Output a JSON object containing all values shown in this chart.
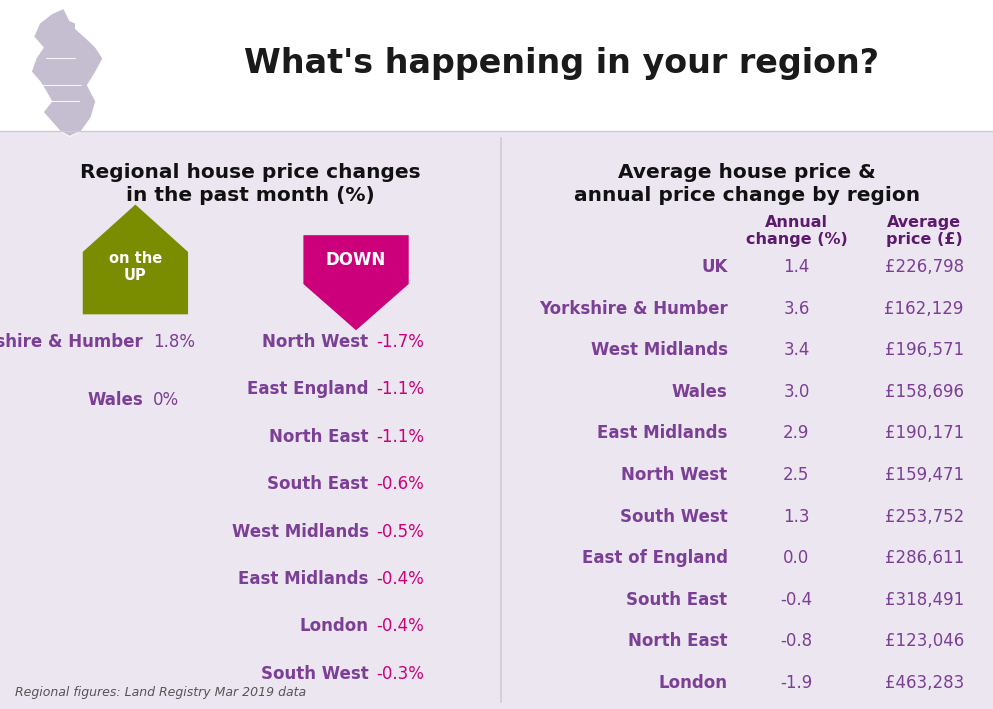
{
  "title": "What's happening in your region?",
  "left_title": "Regional house price changes\nin the past month (%)",
  "right_title": "Average house price &\nannual price change by region",
  "up_regions": [
    {
      "name": "Yorkshire & Humber",
      "value": "1.8%"
    },
    {
      "name": "Wales",
      "value": "0%"
    }
  ],
  "down_regions": [
    {
      "name": "North West",
      "value": "-1.7%"
    },
    {
      "name": "East England",
      "value": "-1.1%"
    },
    {
      "name": "North East",
      "value": "-1.1%"
    },
    {
      "name": "South East",
      "value": "-0.6%"
    },
    {
      "name": "West Midlands",
      "value": "-0.5%"
    },
    {
      "name": "East Midlands",
      "value": "-0.4%"
    },
    {
      "name": "London",
      "value": "-0.4%"
    },
    {
      "name": "South West",
      "value": "-0.3%"
    }
  ],
  "annual_table": [
    {
      "region": "UK",
      "annual": "1.4",
      "price": "£226,798"
    },
    {
      "region": "Yorkshire & Humber",
      "annual": "3.6",
      "price": "£162,129"
    },
    {
      "region": "West Midlands",
      "annual": "3.4",
      "price": "£196,571"
    },
    {
      "region": "Wales",
      "annual": "3.0",
      "price": "£158,696"
    },
    {
      "region": "East Midlands",
      "annual": "2.9",
      "price": "£190,171"
    },
    {
      "region": "North West",
      "annual": "2.5",
      "price": "£159,471"
    },
    {
      "region": "South West",
      "annual": "1.3",
      "price": "£253,752"
    },
    {
      "region": "East of England",
      "annual": "0.0",
      "price": "£286,611"
    },
    {
      "region": "South East",
      "annual": "-0.4",
      "price": "£318,491"
    },
    {
      "region": "North East",
      "annual": "-0.8",
      "price": "£123,046"
    },
    {
      "region": "London",
      "annual": "-1.9",
      "price": "£463,283"
    }
  ],
  "footnote": "Regional figures: Land Registry Mar 2019 data",
  "purple_dark": "#5c1a6e",
  "purple_text": "#7b3f96",
  "magenta": "#cc007a",
  "up_color": "#7a8c00",
  "down_color": "#cc007a",
  "col1_header": "Annual\nchange (%)",
  "col2_header": "Average\nprice (£)",
  "lavender_bg": "#ece6f0",
  "white_bg": "#ffffff",
  "header_line_color": "#d0c8d8"
}
